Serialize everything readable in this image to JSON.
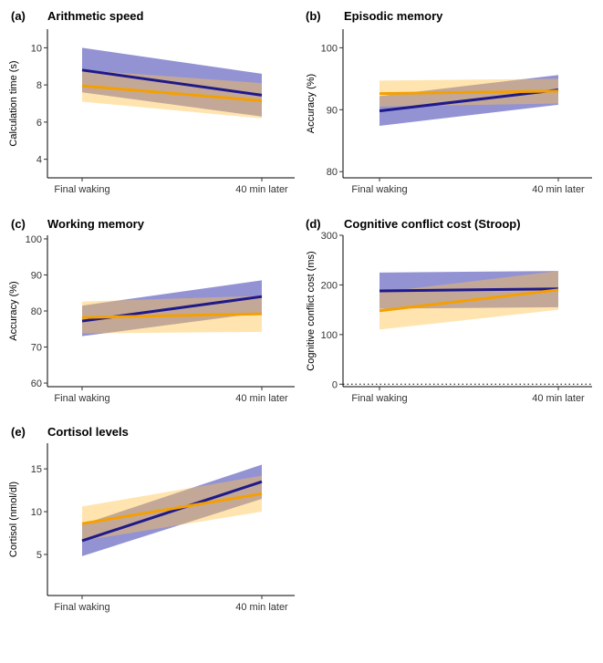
{
  "figure": {
    "x_categories": [
      "Final waking",
      "40 min later"
    ]
  },
  "series_colors": {
    "group_a_line": "#1f1a8a",
    "group_a_band": "#3b3bb0",
    "group_b_line": "#f5a000",
    "group_b_band": "#ffc44d"
  },
  "chart_data": [
    {
      "type": "line",
      "panel_label": "(a)",
      "title": "Arithmetic speed",
      "xlabel": "",
      "ylabel": "Calculation time (s)",
      "categories": [
        "Final waking",
        "40 min later"
      ],
      "ylim": [
        3,
        11
      ],
      "yticks": [
        4,
        6,
        8,
        10
      ],
      "reference_line": null,
      "series": [
        {
          "name": "group_a",
          "values": [
            8.8,
            7.45
          ],
          "lower": [
            7.6,
            6.3
          ],
          "upper": [
            10.0,
            8.6
          ]
        },
        {
          "name": "group_b",
          "values": [
            7.95,
            7.15
          ],
          "lower": [
            7.1,
            6.2
          ],
          "upper": [
            8.8,
            8.1
          ]
        }
      ]
    },
    {
      "type": "line",
      "panel_label": "(b)",
      "title": "Episodic memory",
      "xlabel": "",
      "ylabel": "Accuracy (%)",
      "categories": [
        "Final waking",
        "40 min later"
      ],
      "ylim": [
        79,
        103
      ],
      "yticks": [
        80,
        90,
        100
      ],
      "reference_line": null,
      "series": [
        {
          "name": "group_a",
          "values": [
            89.8,
            93.2
          ],
          "lower": [
            87.4,
            90.8
          ],
          "upper": [
            92.2,
            95.6
          ]
        },
        {
          "name": "group_b",
          "values": [
            92.6,
            93.0
          ],
          "lower": [
            90.5,
            91.0
          ],
          "upper": [
            94.7,
            95.0
          ]
        }
      ]
    },
    {
      "type": "line",
      "panel_label": "(c)",
      "title": "Working memory",
      "xlabel": "",
      "ylabel": "Accuracy (%)",
      "categories": [
        "Final waking",
        "40 min later"
      ],
      "ylim": [
        59,
        101
      ],
      "yticks": [
        60,
        70,
        80,
        90,
        100
      ],
      "reference_line": null,
      "series": [
        {
          "name": "group_a",
          "values": [
            77.2,
            84.0
          ],
          "lower": [
            73.0,
            79.5
          ],
          "upper": [
            81.5,
            88.5
          ]
        },
        {
          "name": "group_b",
          "values": [
            78.2,
            79.2
          ],
          "lower": [
            73.8,
            74.2
          ],
          "upper": [
            82.6,
            84.2
          ]
        }
      ]
    },
    {
      "type": "line",
      "panel_label": "(d)",
      "title": "Cognitive conflict cost (Stroop)",
      "xlabel": "",
      "ylabel": "Cognitive conflict cost (ms)",
      "categories": [
        "Final waking",
        "40 min later"
      ],
      "ylim": [
        -5,
        300
      ],
      "yticks": [
        0,
        100,
        200,
        300
      ],
      "reference_line": 0,
      "series": [
        {
          "name": "group_a",
          "values": [
            188,
            192
          ],
          "lower": [
            152,
            155
          ],
          "upper": [
            225,
            228
          ]
        },
        {
          "name": "group_b",
          "values": [
            148,
            190
          ],
          "lower": [
            110,
            150
          ],
          "upper": [
            185,
            228
          ]
        }
      ]
    },
    {
      "type": "line",
      "panel_label": "(e)",
      "title": "Cortisol levels",
      "xlabel": "",
      "ylabel": "Cortisol (nmol/dl)",
      "categories": [
        "Final waking",
        "40 min later"
      ],
      "ylim": [
        0.2,
        18
      ],
      "yticks": [
        5,
        10,
        15
      ],
      "reference_line": null,
      "series": [
        {
          "name": "group_a",
          "values": [
            6.6,
            13.5
          ],
          "lower": [
            4.8,
            11.5
          ],
          "upper": [
            8.5,
            15.5
          ]
        },
        {
          "name": "group_b",
          "values": [
            8.6,
            12.1
          ],
          "lower": [
            6.6,
            10.0
          ],
          "upper": [
            10.6,
            14.2
          ]
        }
      ]
    }
  ]
}
